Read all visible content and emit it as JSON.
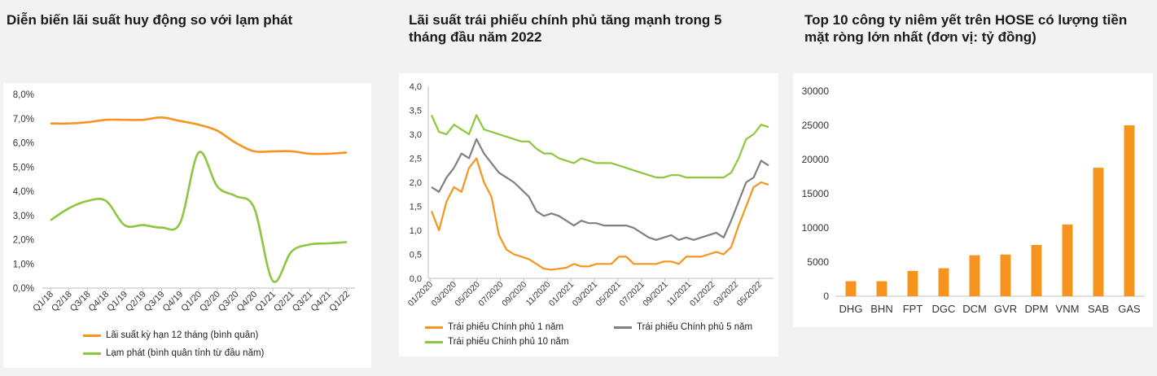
{
  "chart_data": [
    {
      "type": "line",
      "title": "Diễn biến lãi suất huy động so với lạm phát",
      "categories": [
        "Q1/18",
        "Q2/18",
        "Q3/18",
        "Q4/18",
        "Q1/19",
        "Q2/19",
        "Q3/19",
        "Q4/19",
        "Q1/20",
        "Q2/20",
        "Q3/20",
        "Q4/20",
        "Q1/21",
        "Q2/21",
        "Q3/21",
        "Q4/21",
        "Q1/22"
      ],
      "y_ticks": [
        "0,0%",
        "1,0%",
        "2,0%",
        "3,0%",
        "4,0%",
        "5,0%",
        "6,0%",
        "7,0%",
        "8,0%"
      ],
      "ylim": [
        0,
        8
      ],
      "grid": false,
      "legend_position": "bottom",
      "series": [
        {
          "name": "Lãi suất kỳ hạn 12 tháng (bình quân)",
          "color": "#f7941d",
          "values": [
            6.8,
            6.8,
            6.85,
            6.95,
            6.95,
            6.95,
            7.05,
            6.9,
            6.75,
            6.5,
            6.0,
            5.65,
            5.65,
            5.65,
            5.55,
            5.55,
            5.6
          ]
        },
        {
          "name": "Lạm phát (bình quân tính từ đầu năm)",
          "color": "#8dc63f",
          "values": [
            2.8,
            3.3,
            3.6,
            3.6,
            2.6,
            2.6,
            2.5,
            2.7,
            5.6,
            4.2,
            3.8,
            3.3,
            0.3,
            1.5,
            1.8,
            1.85,
            1.9
          ]
        }
      ]
    },
    {
      "type": "line",
      "title": "Lãi suất trái phiếu chính phủ tăng mạnh trong 5 tháng đầu năm 2022",
      "x_ticks": [
        "01/2020",
        "03/2020",
        "05/2020",
        "07/2020",
        "09/2020",
        "11/2020",
        "01/2021",
        "03/2021",
        "05/2021",
        "07/2021",
        "09/2021",
        "11/2021",
        "01/2022",
        "03/2022",
        "05/2022"
      ],
      "y_ticks": [
        "0,0",
        "0,5",
        "1,0",
        "1,5",
        "2,0",
        "2,5",
        "3,0",
        "3,5",
        "4,0"
      ],
      "ylim": [
        0,
        4
      ],
      "grid": false,
      "legend_position": "bottom",
      "series": [
        {
          "name": "Trái phiếu Chính phủ 1 năm",
          "color": "#f7941d",
          "values": [
            1.4,
            1.0,
            1.6,
            1.9,
            1.8,
            2.3,
            2.5,
            2.0,
            1.7,
            0.9,
            0.6,
            0.5,
            0.45,
            0.4,
            0.3,
            0.2,
            0.18,
            0.2,
            0.22,
            0.3,
            0.25,
            0.25,
            0.3,
            0.3,
            0.3,
            0.45,
            0.45,
            0.3,
            0.3,
            0.3,
            0.3,
            0.35,
            0.35,
            0.3,
            0.45,
            0.45,
            0.45,
            0.5,
            0.55,
            0.5,
            0.65,
            1.1,
            1.5,
            1.9,
            2.0,
            1.95
          ]
        },
        {
          "name": "Trái phiếu Chính phủ 5 năm",
          "color": "#808080",
          "values": [
            1.9,
            1.8,
            2.1,
            2.3,
            2.6,
            2.5,
            2.9,
            2.6,
            2.4,
            2.2,
            2.1,
            2.0,
            1.85,
            1.7,
            1.4,
            1.3,
            1.35,
            1.3,
            1.2,
            1.1,
            1.2,
            1.15,
            1.15,
            1.1,
            1.1,
            1.1,
            1.1,
            1.05,
            0.95,
            0.85,
            0.8,
            0.85,
            0.9,
            0.8,
            0.85,
            0.8,
            0.85,
            0.9,
            0.95,
            0.85,
            1.2,
            1.6,
            2.0,
            2.1,
            2.45,
            2.35
          ]
        },
        {
          "name": "Trái phiếu Chính phủ 10 năm",
          "color": "#8dc63f",
          "values": [
            3.4,
            3.05,
            3.0,
            3.2,
            3.1,
            3.0,
            3.4,
            3.1,
            3.05,
            3.0,
            2.95,
            2.9,
            2.85,
            2.85,
            2.7,
            2.6,
            2.6,
            2.5,
            2.45,
            2.4,
            2.5,
            2.45,
            2.4,
            2.4,
            2.4,
            2.35,
            2.3,
            2.25,
            2.2,
            2.15,
            2.1,
            2.1,
            2.15,
            2.15,
            2.1,
            2.1,
            2.1,
            2.1,
            2.1,
            2.1,
            2.2,
            2.5,
            2.9,
            3.0,
            3.2,
            3.15
          ]
        }
      ]
    },
    {
      "type": "bar",
      "title": "Top 10 công ty niêm yết trên HOSE có lượng tiền mặt ròng lớn nhất (đơn vị: tỷ đồng)",
      "categories": [
        "DHG",
        "BHN",
        "FPT",
        "DGC",
        "DCM",
        "GVR",
        "DPM",
        "VNM",
        "SAB",
        "GAS"
      ],
      "values": [
        2200,
        2200,
        3700,
        4100,
        6000,
        6100,
        7500,
        10500,
        18800,
        25000
      ],
      "y_ticks": [
        "0",
        "5000",
        "10000",
        "15000",
        "20000",
        "25000",
        "30000"
      ],
      "ylim": [
        0,
        30000
      ],
      "grid": false,
      "color": "#f7941d"
    }
  ]
}
